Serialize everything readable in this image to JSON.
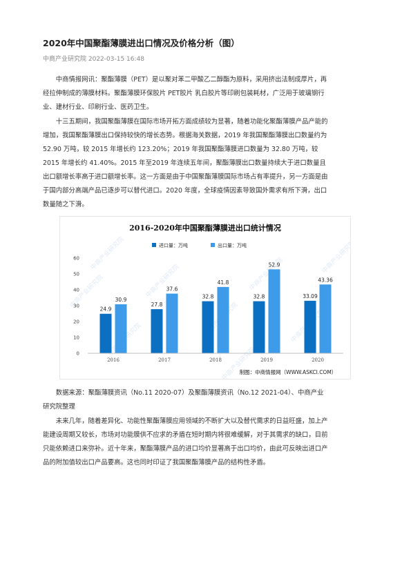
{
  "article": {
    "title": "2020年中国聚酯薄膜进出口情况及价格分析（图）",
    "meta": "中商产业研究院 2022-03-15 16:48",
    "p1_lines": [
      "中商情报网讯：聚酯薄膜（PET）是以聚对苯二甲酸乙二醇酯为原料，采用挤出法制成厚片，再",
      "经拉伸制成的薄膜材料。聚酯薄膜环保胶片 PET胶片 乳白胶片等印刷包装耗材，广泛用于玻璃钢行",
      "业、建材行业、印刷行业、医药卫生。"
    ],
    "p2_lines": [
      "十三五期间，我国聚酯薄膜在国际市场开拓方面成绩较为显著，随着功能化聚酯薄膜产品产能的",
      "增加，我国聚酯薄膜出口保持较快的增长态势。根据海关数据，2019 年我国聚酯薄膜出口数量约为",
      "52.90 万吨，较 2015 年增长约 123.20%；2019 年我国聚酯薄膜进口数量为 32.80 万吨，较",
      "2015 年增长约 41.40%。2015 年至2019 年连续五年间，聚酯薄膜出口数量持续大于进口数量且",
      "出口额增长率高于进口额增长率。这一方面是由于中国聚酯薄膜国际市场占有率提升，另一方面是由",
      "于国内部分高端产品已逐步可以替代进口。2020 年度，全球疫情因素导致国外需求有所下滑，出口",
      "数量随之下滑。"
    ],
    "source_lines": [
      "数据来源：聚酯薄膜资讯（No.11 2020-07）及聚酯薄膜资讯（No.12 2021-04）、中商产业",
      "研究院整理"
    ],
    "p3_lines": [
      "未来几年，随着差异化、功能性聚酯薄膜应用领域的不断扩大以及替代需求的日益旺盛，加上产",
      "能建设周期又较长，市场对功能膜供不应求的矛盾在短时期内将很难缓解，对于其需求的缺口，目前",
      "只能依赖进口来弥补。近十年来，聚酯薄膜产品的进口均价显著高于出口均价，由此可反映出进口产",
      "品的附加值较出口产品要高。这也同时印证了我国聚酯薄膜产品的结构性矛盾。"
    ]
  },
  "chart_data": {
    "type": "bar",
    "title": "2016-2020年中国聚酯薄膜进出口统计情况",
    "categories": [
      "2016",
      "2017",
      "2018",
      "2019",
      "2020"
    ],
    "series": [
      {
        "name": "进口量：万吨",
        "values": [
          24.9,
          27.8,
          32.8,
          32.8,
          33.09
        ],
        "color": "#0b6fc2"
      },
      {
        "name": "出口量：万吨",
        "values": [
          30.9,
          37.6,
          41.8,
          52.9,
          43.36
        ],
        "color": "#3d9be9"
      }
    ],
    "value_labels": [
      [
        "24.9",
        "27.8",
        "32.8",
        "32.8",
        "33.09"
      ],
      [
        "30.9",
        "37.6",
        "41.8",
        "52.9",
        "43.36"
      ]
    ],
    "ylim": [
      0,
      60
    ],
    "yticks": [
      "0",
      "10",
      "20",
      "30",
      "40",
      "50",
      "60"
    ],
    "legend_position": "top-left",
    "grid": false,
    "credit": "制图：中商情报网（WWW.ASKCI.COM）",
    "watermark": "中商产业研究院"
  }
}
